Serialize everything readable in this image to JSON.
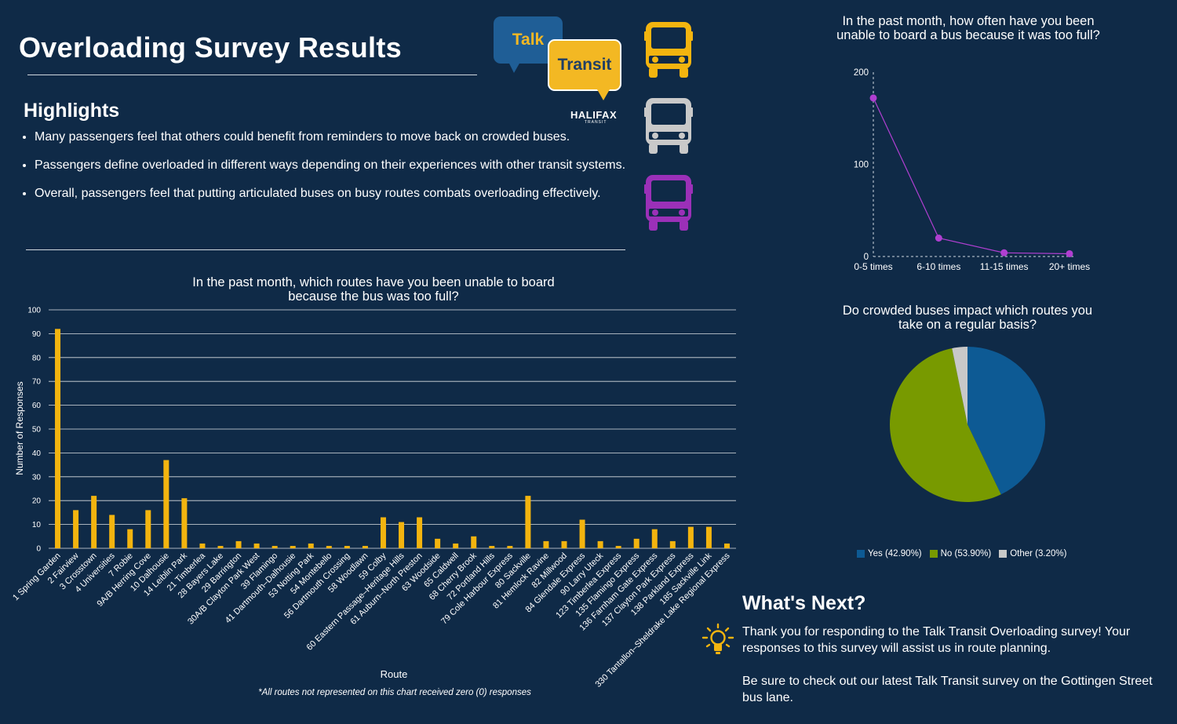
{
  "page": {
    "title": "Overloading Survey Results",
    "highlights_title": "Highlights",
    "highlights": [
      "Many passengers feel that others could benefit from reminders to move back on crowded buses.",
      "Passengers define overloaded in different ways depending on their experiences with other transit systems.",
      "Overall, passengers feel that putting articulated buses on busy routes combats overloading effectively."
    ]
  },
  "logo": {
    "talk": "Talk",
    "transit": "Transit",
    "halifax": "HALIFAX",
    "transit_small": "TRANSIT"
  },
  "icons": {
    "bus_colors": [
      "#f3b40f",
      "#c9c9c9",
      "#9b30b8"
    ]
  },
  "colors": {
    "bar": "#f3b40f",
    "line": "#b03fd1",
    "pie_yes": "#0d5a94",
    "pie_no": "#789a00",
    "pie_other": "#c8c8c8",
    "bulb": "#f3b40f"
  },
  "next": {
    "title": "What's Next?",
    "p1": "Thank you for responding to the Talk Transit Overloading survey! Your responses to this survey will assist us in route planning.",
    "p2": "Be sure to check out our latest Talk Transit survey on the Gottingen Street bus lane."
  },
  "chart_data": [
    {
      "id": "routes",
      "type": "bar",
      "title": "In the past month, which routes have you been unable to board because the bus was too full?",
      "xlabel": "Route",
      "ylabel": "Number of Responses",
      "note": "*All routes not represented on this chart received zero (0) responses",
      "ylim": [
        0,
        100
      ],
      "yticks": [
        0,
        10,
        20,
        30,
        40,
        50,
        60,
        70,
        80,
        90,
        100
      ],
      "grid": true,
      "categories": [
        "1 Spring Garden",
        "2 Fairview",
        "3 Crosstown",
        "4 Universities",
        "7 Robie",
        "9A/B Herring Cove",
        "10 Dalhousie",
        "14 Leiblin Park",
        "21 Timberlea",
        "28 Bayers Lake",
        "29 Barrington",
        "30A/B Clayton Park West",
        "39 Flamingo",
        "41 Dartmouth–Dalhousie",
        "53 Notting Park",
        "54 Montebello",
        "56 Dartmouth Crossing",
        "58 Woodlawn",
        "59 Colby",
        "60 Eastern Passage–Heritage Hills",
        "61 Auburn–North Preston",
        "63 Woodside",
        "65 Caldwell",
        "68 Cherry Brook",
        "72 Portland Hills",
        "79 Cole Harbour Express",
        "80 Sackville",
        "81 Hemlock Ravine",
        "82 Millwood",
        "84 Glendale Express",
        "90 Larry Uteck",
        "123 Timberlea Express",
        "135 Flamingo Express",
        "136 Farnham Gate Express",
        "137 Clayton Park Express",
        "138 Parkland Express",
        "185 Sackville Link",
        "330 Tantallon–Sheldrake Lake Regional Express"
      ],
      "values": [
        92,
        16,
        22,
        14,
        8,
        16,
        37,
        21,
        2,
        1,
        3,
        2,
        1,
        1,
        2,
        1,
        1,
        1,
        13,
        11,
        13,
        4,
        2,
        5,
        1,
        1,
        22,
        3,
        3,
        12,
        3,
        1,
        4,
        8,
        3,
        9,
        9,
        2
      ]
    },
    {
      "id": "frequency",
      "type": "line",
      "title": "In the past month, how often have you been unable to board a bus because it was too full?",
      "categories": [
        "0-5 times",
        "6-10 times",
        "11-15 times",
        "20+ times"
      ],
      "values": [
        172,
        20,
        4,
        3
      ],
      "ylim": [
        0,
        200
      ],
      "yticks": [
        0,
        100,
        200
      ]
    },
    {
      "id": "impact",
      "type": "pie",
      "title": "Do crowded buses impact which routes you take on a regular basis?",
      "slices": [
        {
          "label": "Yes (42.90%)",
          "value": 42.9
        },
        {
          "label": "No (53.90%)",
          "value": 53.9
        },
        {
          "label": "Other (3.20%)",
          "value": 3.2
        }
      ],
      "legend": "bottom"
    }
  ]
}
